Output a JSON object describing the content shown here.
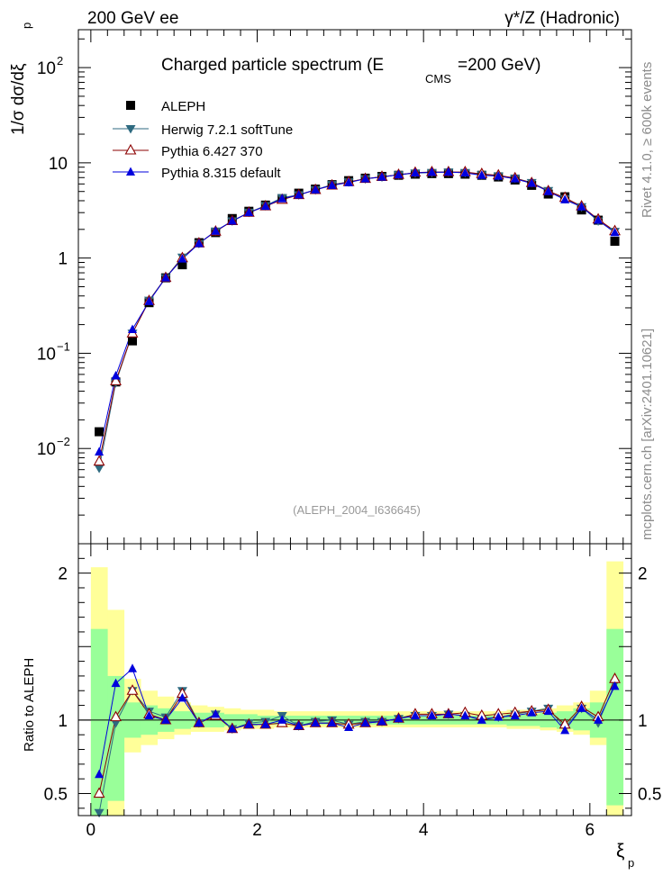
{
  "header": {
    "left": "200 GeV ee",
    "right": "γ*/Z (Hadronic)"
  },
  "side": {
    "rivet": "Rivet 4.1.0, ≥ 600k events",
    "mcplots": "mcplots.cern.ch [arXiv:2401.10621]"
  },
  "chart_data": [
    {
      "type": "scatter",
      "title": "Charged particle spectrum (E",
      "title_sub": "CMS",
      "title_tail": "=200 GeV)",
      "ylabel": "1/σ  dσ/dξ",
      "ylabel_sub": "p",
      "yscale": "log",
      "ylim": [
        0.001,
        250
      ],
      "xlim": [
        -0.15,
        6.5
      ],
      "yticks": [
        {
          "value": 0.01,
          "label": "10",
          "exp": "−2"
        },
        {
          "value": 0.1,
          "label": "10",
          "exp": "−1"
        },
        {
          "value": 1,
          "label": "1",
          "exp": ""
        },
        {
          "value": 10,
          "label": "10",
          "exp": ""
        },
        {
          "value": 100,
          "label": "10",
          "exp": "2"
        }
      ],
      "annotation": "(ALEPH_2004_I636645)",
      "x": [
        0.1,
        0.3,
        0.5,
        0.7,
        0.9,
        1.1,
        1.3,
        1.5,
        1.7,
        1.9,
        2.1,
        2.3,
        2.5,
        2.7,
        2.9,
        3.1,
        3.3,
        3.5,
        3.7,
        3.9,
        4.1,
        4.3,
        4.5,
        4.7,
        4.9,
        5.1,
        5.3,
        5.5,
        5.7,
        5.9,
        6.1,
        6.3
      ],
      "legend": [
        {
          "name": "ALEPH",
          "marker": "square",
          "color": "#000000"
        },
        {
          "name": "Herwig 7.2.1 softTune",
          "marker": "triangle-down",
          "color": "#2e6a80"
        },
        {
          "name": "Pythia 6.427 370",
          "marker": "triangle-open",
          "color": "#8b0000"
        },
        {
          "name": "Pythia 8.315 default",
          "marker": "triangle-up",
          "color": "#0000dd"
        }
      ],
      "series": [
        {
          "name": "ALEPH",
          "values": [
            0.015,
            0.05,
            0.135,
            0.34,
            0.62,
            0.85,
            1.45,
            1.85,
            2.6,
            3.1,
            3.6,
            4.2,
            4.8,
            5.3,
            5.9,
            6.5,
            6.9,
            7.2,
            7.4,
            7.6,
            7.7,
            7.7,
            7.6,
            7.4,
            7.1,
            6.6,
            5.8,
            4.7,
            4.4,
            3.2,
            2.5,
            1.5
          ]
        },
        {
          "name": "Herwig 7.2.1 softTune",
          "values": [
            0.0062,
            0.049,
            0.162,
            0.36,
            0.62,
            1.02,
            1.42,
            1.92,
            2.45,
            3.02,
            3.55,
            4.3,
            4.6,
            5.2,
            5.9,
            6.3,
            6.8,
            7.1,
            7.5,
            7.8,
            7.9,
            8.0,
            7.9,
            7.5,
            7.3,
            6.9,
            6.2,
            5.1,
            4.2,
            3.45,
            2.45,
            1.9
          ]
        },
        {
          "name": "Pythia 6.427 370",
          "values": [
            0.0073,
            0.051,
            0.162,
            0.355,
            0.62,
            1.0,
            1.43,
            1.9,
            2.45,
            3.0,
            3.5,
            4.1,
            4.6,
            5.2,
            5.8,
            6.3,
            6.8,
            7.15,
            7.5,
            7.9,
            8.0,
            8.0,
            8.0,
            7.65,
            7.4,
            6.9,
            6.15,
            5.05,
            4.3,
            3.5,
            2.55,
            1.92
          ]
        },
        {
          "name": "Pythia 8.315 default",
          "values": [
            0.0092,
            0.058,
            0.178,
            0.35,
            0.62,
            0.98,
            1.42,
            1.92,
            2.45,
            3.0,
            3.5,
            4.2,
            4.6,
            5.2,
            5.8,
            6.2,
            6.8,
            7.1,
            7.5,
            7.85,
            7.95,
            8.0,
            7.85,
            7.4,
            7.25,
            6.8,
            6.1,
            5.0,
            4.1,
            3.45,
            2.5,
            1.85
          ]
        }
      ]
    },
    {
      "type": "line",
      "ylabel": "Ratio to ALEPH",
      "xlabel": "ξ",
      "xlabel_sub": "p",
      "ylim": [
        0.35,
        2.2
      ],
      "xlim": [
        -0.15,
        6.5
      ],
      "yticks": [
        0.5,
        1,
        2
      ],
      "xticks": [
        0,
        2,
        4,
        6
      ],
      "band_edges": [
        0.0,
        0.2,
        0.4,
        0.6,
        0.8,
        1.0,
        1.2,
        1.4,
        1.6,
        1.8,
        2.0,
        2.2,
        2.4,
        2.6,
        2.8,
        3.0,
        3.2,
        3.4,
        3.6,
        3.8,
        4.0,
        4.2,
        4.4,
        4.6,
        4.8,
        5.0,
        5.2,
        5.4,
        5.6,
        5.8,
        6.0,
        6.2,
        6.4
      ],
      "band_inner": [
        [
          0.35,
          1.62
        ],
        [
          0.45,
          1.3
        ],
        [
          0.88,
          1.12
        ],
        [
          0.9,
          1.1
        ],
        [
          0.92,
          1.08
        ],
        [
          0.94,
          1.06
        ],
        [
          0.95,
          1.05
        ],
        [
          0.95,
          1.05
        ],
        [
          0.96,
          1.04
        ],
        [
          0.96,
          1.04
        ],
        [
          0.97,
          1.03
        ],
        [
          0.97,
          1.03
        ],
        [
          0.97,
          1.03
        ],
        [
          0.97,
          1.03
        ],
        [
          0.97,
          1.03
        ],
        [
          0.97,
          1.03
        ],
        [
          0.97,
          1.03
        ],
        [
          0.97,
          1.03
        ],
        [
          0.97,
          1.03
        ],
        [
          0.97,
          1.03
        ],
        [
          0.97,
          1.03
        ],
        [
          0.97,
          1.03
        ],
        [
          0.97,
          1.03
        ],
        [
          0.97,
          1.03
        ],
        [
          0.97,
          1.03
        ],
        [
          0.96,
          1.04
        ],
        [
          0.96,
          1.04
        ],
        [
          0.95,
          1.05
        ],
        [
          0.94,
          1.06
        ],
        [
          0.93,
          1.08
        ],
        [
          0.88,
          1.12
        ],
        [
          0.42,
          1.62
        ]
      ],
      "band_outer": [
        [
          0.35,
          2.04
        ],
        [
          0.35,
          1.75
        ],
        [
          0.78,
          1.28
        ],
        [
          0.83,
          1.2
        ],
        [
          0.87,
          1.16
        ],
        [
          0.9,
          1.12
        ],
        [
          0.92,
          1.1
        ],
        [
          0.92,
          1.09
        ],
        [
          0.93,
          1.08
        ],
        [
          0.94,
          1.07
        ],
        [
          0.94,
          1.07
        ],
        [
          0.95,
          1.06
        ],
        [
          0.95,
          1.06
        ],
        [
          0.95,
          1.06
        ],
        [
          0.95,
          1.06
        ],
        [
          0.95,
          1.06
        ],
        [
          0.95,
          1.06
        ],
        [
          0.95,
          1.06
        ],
        [
          0.95,
          1.06
        ],
        [
          0.95,
          1.06
        ],
        [
          0.95,
          1.06
        ],
        [
          0.95,
          1.06
        ],
        [
          0.95,
          1.06
        ],
        [
          0.95,
          1.06
        ],
        [
          0.95,
          1.06
        ],
        [
          0.94,
          1.07
        ],
        [
          0.94,
          1.07
        ],
        [
          0.93,
          1.08
        ],
        [
          0.92,
          1.1
        ],
        [
          0.9,
          1.12
        ],
        [
          0.83,
          1.2
        ],
        [
          0.35,
          2.08
        ]
      ],
      "band_colors": {
        "inner": "#99ff99",
        "outer": "#ffff99"
      },
      "x": [
        0.1,
        0.3,
        0.5,
        0.7,
        0.9,
        1.1,
        1.3,
        1.5,
        1.7,
        1.9,
        2.1,
        2.3,
        2.5,
        2.7,
        2.9,
        3.1,
        3.3,
        3.5,
        3.7,
        3.9,
        4.1,
        4.3,
        4.5,
        4.7,
        4.9,
        5.1,
        5.3,
        5.5,
        5.7,
        5.9,
        6.1,
        6.3
      ],
      "series": [
        {
          "name": "Herwig 7.2.1 softTune",
          "values": [
            0.37,
            0.98,
            1.2,
            1.06,
            1.02,
            1.2,
            0.98,
            1.04,
            0.94,
            0.98,
            0.99,
            1.03,
            0.96,
            0.99,
            1.0,
            0.97,
            0.99,
            0.99,
            1.01,
            1.03,
            1.03,
            1.04,
            1.03,
            1.01,
            1.02,
            1.04,
            1.06,
            1.08,
            0.95,
            1.08,
            0.98,
            1.25
          ]
        },
        {
          "name": "Pythia 6.427 370",
          "values": [
            0.5,
            1.02,
            1.2,
            1.04,
            1.0,
            1.18,
            0.98,
            1.03,
            0.94,
            0.97,
            0.97,
            0.98,
            0.96,
            0.98,
            0.98,
            0.97,
            0.98,
            0.99,
            1.01,
            1.04,
            1.04,
            1.04,
            1.05,
            1.03,
            1.04,
            1.05,
            1.06,
            1.07,
            0.97,
            1.09,
            1.02,
            1.28
          ]
        },
        {
          "name": "Pythia 8.315 default",
          "values": [
            0.63,
            1.25,
            1.35,
            1.03,
            1.0,
            1.15,
            0.98,
            1.04,
            0.94,
            0.97,
            0.97,
            1.0,
            0.96,
            0.98,
            0.98,
            0.95,
            0.98,
            0.99,
            1.01,
            1.03,
            1.03,
            1.04,
            1.03,
            1.0,
            1.02,
            1.03,
            1.05,
            1.06,
            0.93,
            1.08,
            1.0,
            1.23
          ]
        }
      ]
    }
  ]
}
